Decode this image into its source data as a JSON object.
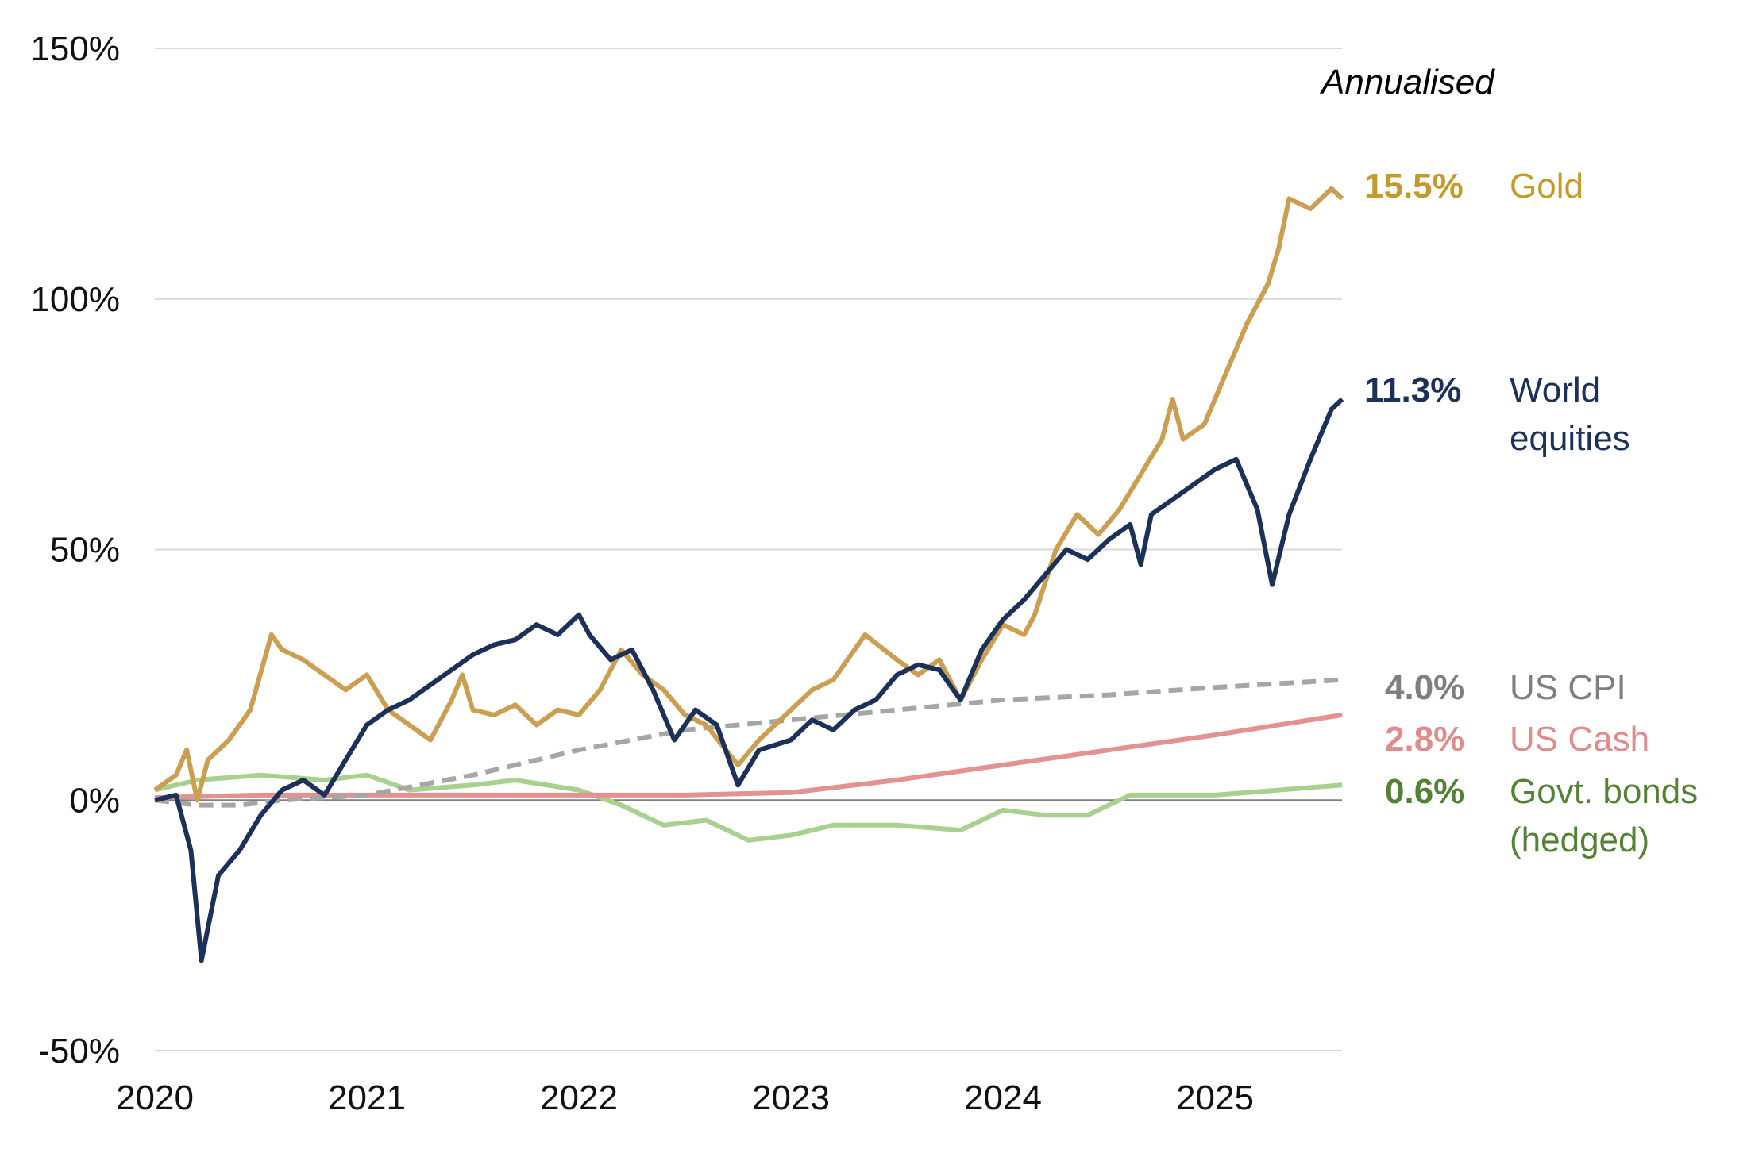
{
  "chart_data": {
    "type": "line",
    "title": "",
    "xlabel": "",
    "ylabel": "",
    "xlim": [
      2020,
      2025.6
    ],
    "ylim": [
      -50,
      150
    ],
    "x_ticks": [
      "2020",
      "2021",
      "2022",
      "2023",
      "2024",
      "2025"
    ],
    "y_ticks": [
      "150%",
      "100%",
      "50%",
      "0%",
      "-50%"
    ],
    "y_tick_values": [
      150,
      100,
      50,
      0,
      -50
    ],
    "grid": true,
    "legend_placement": "right (direct labels)",
    "annotation": "Annualised",
    "series": [
      {
        "name": "Gold",
        "annualised": "15.5%",
        "color": "#cc9e52",
        "label_color": "#c49a2a",
        "style": "solid",
        "x": [
          2020.0,
          2020.1,
          2020.15,
          2020.2,
          2020.25,
          2020.35,
          2020.45,
          2020.55,
          2020.6,
          2020.7,
          2020.8,
          2020.9,
          2021.0,
          2021.1,
          2021.2,
          2021.3,
          2021.4,
          2021.45,
          2021.5,
          2021.6,
          2021.7,
          2021.8,
          2021.9,
          2022.0,
          2022.1,
          2022.2,
          2022.3,
          2022.4,
          2022.5,
          2022.6,
          2022.75,
          2022.85,
          2023.0,
          2023.1,
          2023.2,
          2023.35,
          2023.5,
          2023.6,
          2023.7,
          2023.8,
          2023.9,
          2024.0,
          2024.1,
          2024.15,
          2024.25,
          2024.35,
          2024.45,
          2024.55,
          2024.65,
          2024.75,
          2024.8,
          2024.85,
          2024.95,
          2025.05,
          2025.15,
          2025.25,
          2025.3,
          2025.35,
          2025.45,
          2025.55,
          2025.6
        ],
        "y": [
          2,
          5,
          10,
          0,
          8,
          12,
          18,
          33,
          30,
          28,
          25,
          22,
          25,
          18,
          15,
          12,
          20,
          25,
          18,
          17,
          19,
          15,
          18,
          17,
          22,
          30,
          25,
          22,
          17,
          15,
          7,
          12,
          18,
          22,
          24,
          33,
          28,
          25,
          28,
          20,
          28,
          35,
          33,
          37,
          50,
          57,
          53,
          58,
          65,
          72,
          80,
          72,
          75,
          85,
          95,
          103,
          110,
          120,
          118,
          122,
          120
        ]
      },
      {
        "name": "World equities",
        "annualised": "11.3%",
        "color": "#1c3159",
        "label_color": "#1c3159",
        "style": "solid",
        "x": [
          2020.0,
          2020.1,
          2020.17,
          2020.22,
          2020.3,
          2020.4,
          2020.5,
          2020.6,
          2020.7,
          2020.8,
          2020.9,
          2021.0,
          2021.1,
          2021.2,
          2021.3,
          2021.4,
          2021.5,
          2021.6,
          2021.7,
          2021.8,
          2021.9,
          2022.0,
          2022.05,
          2022.15,
          2022.25,
          2022.35,
          2022.45,
          2022.55,
          2022.65,
          2022.75,
          2022.85,
          2023.0,
          2023.1,
          2023.2,
          2023.3,
          2023.4,
          2023.5,
          2023.6,
          2023.7,
          2023.8,
          2023.9,
          2024.0,
          2024.1,
          2024.2,
          2024.3,
          2024.4,
          2024.5,
          2024.6,
          2024.65,
          2024.7,
          2024.8,
          2024.9,
          2025.0,
          2025.1,
          2025.2,
          2025.27,
          2025.35,
          2025.45,
          2025.55,
          2025.6
        ],
        "y": [
          0,
          1,
          -10,
          -32,
          -15,
          -10,
          -3,
          2,
          4,
          1,
          8,
          15,
          18,
          20,
          23,
          26,
          29,
          31,
          32,
          35,
          33,
          37,
          33,
          28,
          30,
          22,
          12,
          18,
          15,
          3,
          10,
          12,
          16,
          14,
          18,
          20,
          25,
          27,
          26,
          20,
          30,
          36,
          40,
          45,
          50,
          48,
          52,
          55,
          47,
          57,
          60,
          63,
          66,
          68,
          58,
          43,
          57,
          68,
          78,
          80
        ]
      },
      {
        "name": "US CPI",
        "annualised": "4.0%",
        "color": "#a6a6a6",
        "label_color": "#7f7f7f",
        "style": "dashed",
        "x": [
          2020.0,
          2020.2,
          2020.4,
          2020.6,
          2021.0,
          2021.5,
          2022.0,
          2022.5,
          2023.0,
          2023.5,
          2024.0,
          2024.5,
          2025.0,
          2025.6
        ],
        "y": [
          0,
          -1,
          -1,
          0,
          1,
          5,
          10,
          14,
          16,
          18,
          20,
          21,
          22.5,
          24
        ]
      },
      {
        "name": "US Cash",
        "annualised": "2.8%",
        "color": "#e39191",
        "label_color": "#e08c8c",
        "style": "solid",
        "x": [
          2020.0,
          2020.5,
          2021.0,
          2022.0,
          2022.5,
          2023.0,
          2023.5,
          2024.0,
          2024.5,
          2025.0,
          2025.6
        ],
        "y": [
          0.5,
          1,
          1,
          1,
          1,
          1.5,
          4,
          7,
          10,
          13,
          17
        ]
      },
      {
        "name": "Govt. bonds (hedged)",
        "annualised": "0.6%",
        "color": "#a9d18e",
        "label_color": "#548235",
        "style": "solid",
        "x": [
          2020.0,
          2020.2,
          2020.5,
          2020.8,
          2021.0,
          2021.2,
          2021.5,
          2021.7,
          2022.0,
          2022.2,
          2022.4,
          2022.6,
          2022.8,
          2023.0,
          2023.2,
          2023.5,
          2023.8,
          2024.0,
          2024.2,
          2024.4,
          2024.6,
          2024.8,
          2025.0,
          2025.3,
          2025.6
        ],
        "y": [
          2,
          4,
          5,
          4,
          5,
          2,
          3,
          4,
          2,
          -1,
          -5,
          -4,
          -8,
          -7,
          -5,
          -5,
          -6,
          -2,
          -3,
          -3,
          1,
          1,
          1,
          2,
          3
        ]
      }
    ],
    "labels": {
      "gold": {
        "value": "15.5%",
        "name": "Gold"
      },
      "equities": {
        "value": "11.3%",
        "name_line1": "World",
        "name_line2": "equities"
      },
      "cpi": {
        "value": "4.0%",
        "name": "US CPI"
      },
      "cash": {
        "value": "2.8%",
        "name": "US Cash"
      },
      "bonds": {
        "value": "0.6%",
        "name_line1": "Govt. bonds",
        "name_line2": "(hedged)"
      }
    }
  }
}
